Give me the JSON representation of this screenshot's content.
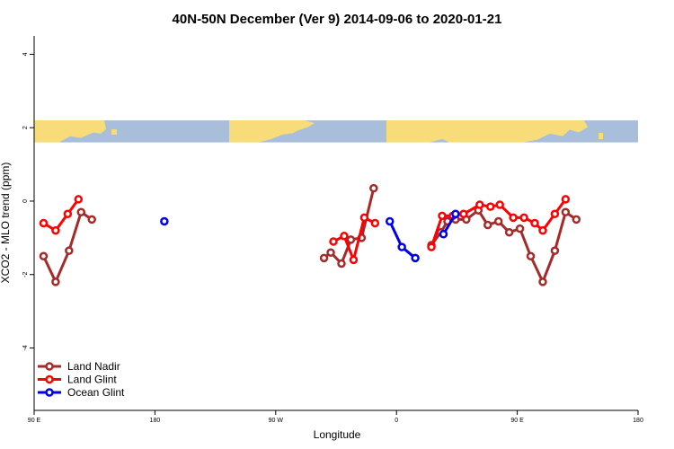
{
  "chart_data": {
    "type": "line",
    "title": "40N-50N December (Ver 9)   2014-09-06 to 2020-01-21",
    "xlabel": "Longitude",
    "ylabel": "XCO2 - MLO trend (ppm)",
    "xlim": [
      90,
      540
    ],
    "ylim": [
      -5.7,
      4.5
    ],
    "x_ticks": [
      {
        "value": 90,
        "label": "90 E"
      },
      {
        "value": 180,
        "label": "180"
      },
      {
        "value": 270,
        "label": "90 W"
      },
      {
        "value": 360,
        "label": "0"
      },
      {
        "value": 450,
        "label": "90 E"
      },
      {
        "value": 540,
        "label": "180"
      }
    ],
    "y_ticks": [
      {
        "value": 4,
        "label": "4"
      },
      {
        "value": 2,
        "label": "2"
      },
      {
        "value": 0,
        "label": "0"
      },
      {
        "value": -2,
        "label": "-2"
      },
      {
        "value": -4,
        "label": "-4"
      }
    ],
    "map_band": {
      "y_range": [
        1.6,
        2.2
      ],
      "ocean_color": "#a8bedb",
      "land_color": "#f8dc7a"
    },
    "legend_position": "bottom-left",
    "series": [
      {
        "name": "Land Nadir",
        "color": "#a52a2a",
        "segments": [
          [
            [
              97,
              -1.5
            ],
            [
              106,
              -2.2
            ],
            [
              116,
              -1.35
            ],
            [
              125,
              -0.3
            ],
            [
              133,
              -0.5
            ]
          ],
          [
            [
              306,
              -1.55
            ],
            [
              311,
              -1.4
            ],
            [
              319,
              -1.7
            ],
            [
              326,
              -1.05
            ],
            [
              334,
              -1.0
            ],
            [
              343,
              0.35
            ]
          ],
          [
            [
              386,
              -1.2
            ],
            [
              393,
              -0.85
            ],
            [
              398,
              -0.55
            ],
            [
              404,
              -0.5
            ],
            [
              412,
              -0.5
            ],
            [
              421,
              -0.25
            ],
            [
              428,
              -0.65
            ],
            [
              436,
              -0.55
            ],
            [
              444,
              -0.85
            ],
            [
              452,
              -0.75
            ],
            [
              460,
              -1.5
            ],
            [
              469,
              -2.2
            ],
            [
              478,
              -1.35
            ],
            [
              486,
              -0.3
            ],
            [
              494,
              -0.5
            ]
          ]
        ]
      },
      {
        "name": "Land Glint",
        "color": "#ff0000",
        "segments": [
          [
            [
              97,
              -0.6
            ],
            [
              106,
              -0.8
            ],
            [
              115,
              -0.35
            ],
            [
              123,
              0.05
            ]
          ],
          [
            [
              313,
              -1.1
            ],
            [
              321,
              -0.95
            ],
            [
              328,
              -1.6
            ],
            [
              336,
              -0.45
            ],
            [
              344,
              -0.6
            ]
          ],
          [
            [
              386,
              -1.25
            ],
            [
              394,
              -0.4
            ],
            [
              402,
              -0.4
            ],
            [
              410,
              -0.35
            ],
            [
              422,
              -0.1
            ],
            [
              430,
              -0.15
            ],
            [
              437,
              -0.1
            ],
            [
              447,
              -0.45
            ],
            [
              455,
              -0.45
            ],
            [
              463,
              -0.6
            ],
            [
              469,
              -0.8
            ],
            [
              478,
              -0.35
            ],
            [
              486,
              0.05
            ]
          ]
        ]
      },
      {
        "name": "Ocean Glint",
        "color": "#0000ee",
        "segments": [
          [
            [
              187,
              -0.55
            ]
          ],
          [
            [
              355,
              -0.55
            ],
            [
              364,
              -1.25
            ],
            [
              374,
              -1.55
            ]
          ],
          [
            [
              395,
              -0.9
            ],
            [
              404,
              -0.35
            ]
          ]
        ]
      }
    ]
  }
}
